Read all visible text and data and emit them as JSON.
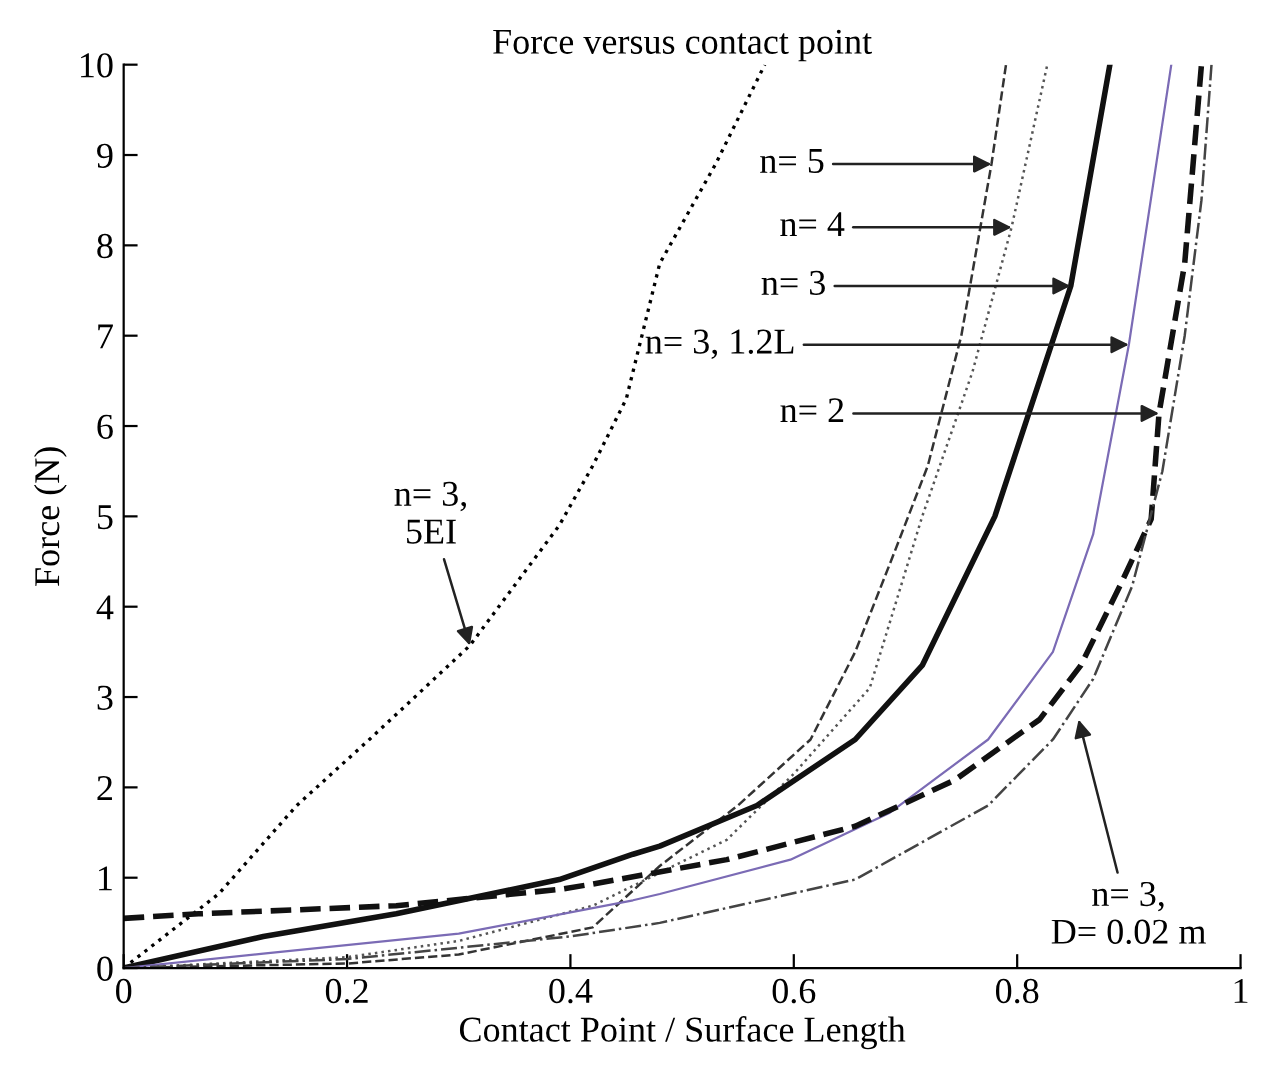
{
  "chart_data": {
    "type": "line",
    "title": "Force versus contact point",
    "xlabel": "Contact Point / Surface Length",
    "ylabel": "Force (N)",
    "xlim": [
      0,
      1
    ],
    "ylim": [
      0,
      10
    ],
    "xticks": [
      0,
      0.2,
      0.4,
      0.6,
      0.8,
      1
    ],
    "yticks": [
      0,
      1,
      2,
      3,
      4,
      5,
      6,
      7,
      8,
      9,
      10
    ],
    "grid": false,
    "series": [
      {
        "color": "#000000",
        "line_style": "dotted",
        "x": [
          0,
          0.085,
          0.155,
          0.22,
          0.31,
          0.39,
          0.42,
          0.45,
          0.48,
          0.53,
          0.574
        ],
        "values": [
          0,
          0.82,
          1.8,
          2.53,
          3.57,
          4.9,
          5.56,
          6.3,
          7.8,
          8.9,
          10
        ]
      },
      {
        "color": "#333333",
        "line_style": "dashed",
        "x": [
          0,
          0.2,
          0.3,
          0.42,
          0.48,
          0.55,
          0.615,
          0.655,
          0.69,
          0.72,
          0.75,
          0.777,
          0.79
        ],
        "values": [
          0,
          0.05,
          0.15,
          0.45,
          1.13,
          1.8,
          2.53,
          3.5,
          4.6,
          5.56,
          7.0,
          8.9,
          10
        ]
      },
      {
        "color": "#555555",
        "line_style": "dotted",
        "x": [
          0,
          0.2,
          0.3,
          0.42,
          0.54,
          0.6,
          0.668,
          0.715,
          0.76,
          0.795,
          0.827
        ],
        "values": [
          0,
          0.12,
          0.3,
          0.69,
          1.42,
          2.15,
          3.1,
          5.0,
          6.6,
          8.2,
          10
        ]
      },
      {
        "color": "#111111",
        "line_style": "solid",
        "x": [
          0,
          0.125,
          0.244,
          0.39,
          0.456,
          0.48,
          0.567,
          0.655,
          0.715,
          0.78,
          0.848,
          0.883
        ],
        "values": [
          0,
          0.35,
          0.6,
          0.98,
          1.26,
          1.35,
          1.8,
          2.53,
          3.35,
          5.0,
          7.55,
          10
        ]
      },
      {
        "color": "#7b6bb5",
        "line_style": "solid",
        "x": [
          0,
          0.125,
          0.3,
          0.456,
          0.48,
          0.597,
          0.686,
          0.774,
          0.832,
          0.868,
          0.9,
          0.938
        ],
        "values": [
          0,
          0.16,
          0.38,
          0.75,
          0.82,
          1.2,
          1.72,
          2.53,
          3.5,
          4.8,
          6.9,
          10
        ]
      },
      {
        "color": "#111111",
        "line_style": "dashed",
        "x": [
          0,
          0.067,
          0.244,
          0.39,
          0.42,
          0.54,
          0.655,
          0.744,
          0.82,
          0.857,
          0.892,
          0.92,
          0.927,
          0.95,
          0.965
        ],
        "values": [
          0.55,
          0.6,
          0.69,
          0.87,
          0.93,
          1.2,
          1.57,
          2.08,
          2.75,
          3.35,
          4.23,
          4.97,
          6.14,
          7.8,
          10
        ]
      },
      {
        "color": "#444444",
        "line_style": "dashdot",
        "x": [
          0,
          0.2,
          0.4,
          0.48,
          0.655,
          0.774,
          0.832,
          0.868,
          0.903,
          0.93,
          0.95,
          0.965,
          0.974
        ],
        "values": [
          0,
          0.1,
          0.35,
          0.5,
          0.98,
          1.8,
          2.53,
          3.2,
          4.23,
          5.5,
          7.0,
          8.5,
          10
        ]
      }
    ],
    "annotations": [
      {
        "text": "n= 5",
        "x": 0.777,
        "y": 8.9
      },
      {
        "text": "n= 4",
        "x": 0.795,
        "y": 8.2
      },
      {
        "text": "n= 3",
        "x": 0.848,
        "y": 7.55
      },
      {
        "text": "n= 3, 1.2L",
        "x": 0.9,
        "y": 6.9
      },
      {
        "text": "n= 2",
        "x": 0.927,
        "y": 6.14
      },
      {
        "text": "n= 3,\n5EI",
        "x": 0.31,
        "y": 3.57
      },
      {
        "text": "n= 3,\nD= 0.02 m",
        "x": 0.855,
        "y": 2.75
      }
    ]
  }
}
